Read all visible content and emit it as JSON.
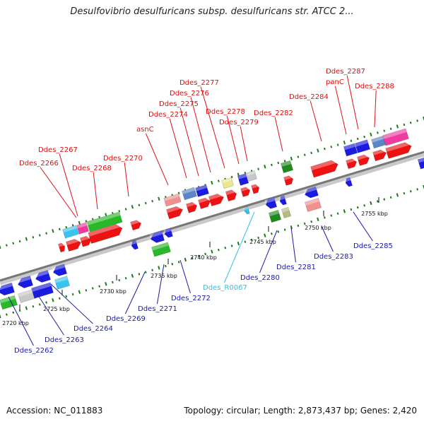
{
  "header": {
    "title": "Desulfovibrio desulfuricans subsp. desulfuricans str. ATCC 2..."
  },
  "footer": {
    "accession": "Accession: NC_011883",
    "stats": "Topology: circular; Length: 2,873,437 bp; Genes: 2,420"
  },
  "colors": {
    "label_top": "#e01010",
    "label_bottom": "#1a1aa8",
    "label_rna": "#30c0e8",
    "backbone": "#7a7a7a",
    "tick": "#1a7a1a"
  },
  "diagram": {
    "scale_labels": [
      "2720 kbp",
      "2725 kbp",
      "2730 kbp",
      "2735 kbp",
      "2740 kbp",
      "2745 kbp",
      "2750 kbp",
      "2755 kbp"
    ],
    "genes_top": [
      "Ddes_2266",
      "Ddes_2267",
      "Ddes_2268",
      "Ddes_2270",
      "asnC",
      "Ddes_2274",
      "Ddes_2275",
      "Ddes_2276",
      "Ddes_2277",
      "Ddes_2278",
      "Ddes_2279",
      "Ddes_2282",
      "Ddes_2284",
      "panC",
      "Ddes_2287",
      "Ddes_2288"
    ],
    "genes_bottom": [
      "Ddes_2262",
      "Ddes_2263",
      "Ddes_2264",
      "Ddes_2269",
      "Ddes_2271",
      "Ddes_2272",
      "Ddes_R0067",
      "Ddes_2280",
      "Ddes_2281",
      "Ddes_2283",
      "Ddes_2285"
    ]
  }
}
